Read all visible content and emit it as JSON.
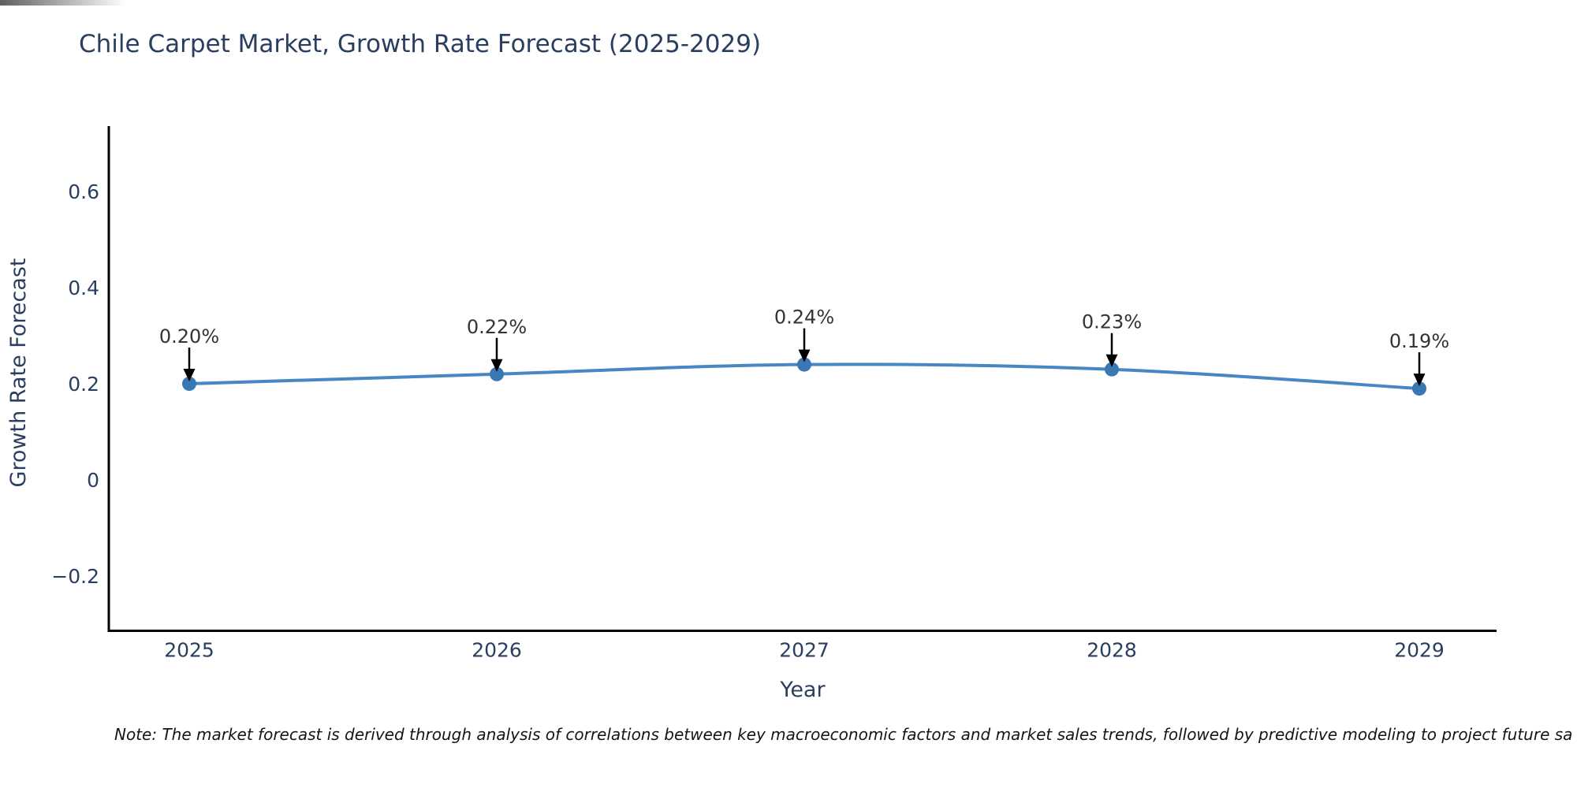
{
  "chart_data": {
    "type": "line",
    "title": "Chile Carpet Market, Growth Rate Forecast (2025-2029)",
    "xlabel": "Year",
    "ylabel": "Growth Rate Forecast",
    "categories": [
      "2025",
      "2026",
      "2027",
      "2028",
      "2029"
    ],
    "series": [
      {
        "name": "Growth Rate Forecast",
        "values": [
          0.2,
          0.22,
          0.24,
          0.23,
          0.19
        ]
      }
    ],
    "point_labels": [
      "0.20%",
      "0.22%",
      "0.24%",
      "0.23%",
      "0.19%"
    ],
    "yticks": [
      -0.2,
      0,
      0.2,
      0.4,
      0.6
    ],
    "ylim": [
      -0.31,
      0.74
    ],
    "grid": false,
    "legend": "none",
    "line_color": "#4787c3",
    "marker_color": "#3a77b5",
    "axis_color": "#000000",
    "text_color": "#2a3f5f",
    "annotation_text_color": "#333333",
    "annotation_arrow_color": "#000000"
  },
  "note": {
    "text": "Note: The market forecast is derived through analysis of correlations between key macroeconomic factors and market sales trends, followed by predictive modeling to project future sa"
  }
}
